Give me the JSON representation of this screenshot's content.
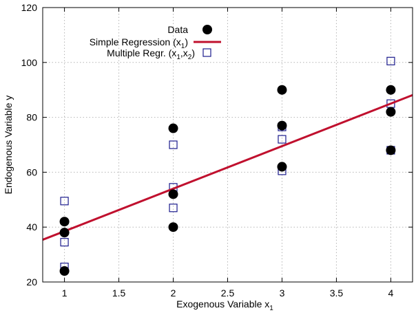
{
  "chart_data": {
    "type": "scatter",
    "xlabel": "Exogenous Variable x",
    "xlabel_sub": "1",
    "ylabel": "Endogenous Variable y",
    "xlim": [
      0.8,
      4.2
    ],
    "ylim": [
      20,
      120
    ],
    "x_ticks": [
      1,
      1.5,
      2,
      2.5,
      3,
      3.5,
      4
    ],
    "x_tick_labels": [
      "1",
      "1.5",
      "2",
      "2.5",
      "3",
      "3.5",
      "4"
    ],
    "y_ticks": [
      20,
      40,
      60,
      80,
      100,
      120
    ],
    "y_tick_labels": [
      "20",
      "40",
      "60",
      "80",
      "100",
      "120"
    ],
    "grid": true,
    "legend_position": "top-left",
    "series": [
      {
        "name": "Data",
        "legend_label": "Data",
        "kind": "points-filled",
        "color": "#000000",
        "x": [
          1,
          1,
          1,
          2,
          2,
          2,
          3,
          3,
          3,
          4,
          4,
          4
        ],
        "y": [
          42,
          38,
          24,
          76,
          52,
          40,
          90,
          77,
          62,
          90,
          82,
          68
        ]
      },
      {
        "name": "Simple Regression (x1)",
        "legend_label": "Simple Regression (x",
        "legend_sub": "1",
        "legend_suffix": ")",
        "kind": "line",
        "color": "#c0102e",
        "intercept": 23,
        "slope": 15.5
      },
      {
        "name": "Multiple Regr. (x1,x2)",
        "legend_label": "Multiple Regr. (x",
        "legend_sub": "1",
        "legend_mid": ",x",
        "legend_sub2": "2",
        "legend_suffix": ")",
        "kind": "points-open-square",
        "color": "#1a1a8c",
        "x": [
          1,
          1,
          1,
          2,
          2,
          2,
          3,
          3,
          3,
          4,
          4,
          4
        ],
        "y": [
          49.5,
          34.5,
          25.5,
          70,
          54.5,
          47,
          76.5,
          72,
          60.5,
          100.5,
          85,
          68
        ]
      }
    ]
  }
}
